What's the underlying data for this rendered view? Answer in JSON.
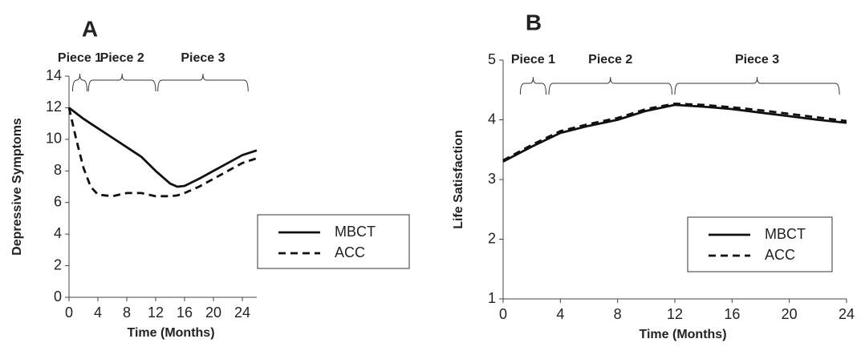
{
  "chart_data": [
    {
      "type": "line",
      "panel_label": "A",
      "x_label": "Time (Months)",
      "y_label": "Depressive Symptoms",
      "x": [
        0,
        1,
        2,
        3,
        4,
        6,
        8,
        10,
        12,
        14,
        15,
        16,
        18,
        20,
        22,
        24,
        26
      ],
      "series": [
        {
          "name": "MBCT",
          "color": "#111111",
          "style": "solid",
          "values": [
            12,
            11.65,
            11.3,
            11.0,
            10.7,
            10.1,
            9.5,
            8.9,
            8.0,
            7.2,
            7.0,
            7.05,
            7.5,
            8.0,
            8.5,
            9.0,
            9.3
          ]
        },
        {
          "name": "ACC",
          "color": "#111111",
          "style": "dashed",
          "values": [
            12,
            10.0,
            8.2,
            7.0,
            6.5,
            6.4,
            6.6,
            6.6,
            6.4,
            6.4,
            6.45,
            6.6,
            7.0,
            7.5,
            8.0,
            8.5,
            8.8
          ]
        }
      ],
      "xlim": [
        0,
        26
      ],
      "xticks": [
        0,
        4,
        8,
        12,
        16,
        20,
        24
      ],
      "ylim": [
        0,
        14
      ],
      "yticks": [
        0,
        2,
        4,
        6,
        8,
        10,
        12,
        14
      ],
      "grid": false,
      "legend": "lower right",
      "pieces": [
        {
          "label": "Piece 1",
          "start": 0.5,
          "end": 2.5
        },
        {
          "label": "Piece 2",
          "start": 2.7,
          "end": 12
        },
        {
          "label": "Piece 3",
          "start": 12.3,
          "end": 24.8
        }
      ]
    },
    {
      "type": "line",
      "panel_label": "B",
      "x_label": "Time (Months)",
      "y_label": "Life Satisfaction",
      "x": [
        0,
        2,
        4,
        6,
        8,
        10,
        12,
        14,
        16,
        18,
        20,
        22,
        24
      ],
      "series": [
        {
          "name": "MBCT",
          "color": "#111111",
          "style": "solid",
          "values": [
            3.3,
            3.55,
            3.78,
            3.9,
            4.0,
            4.15,
            4.25,
            4.22,
            4.18,
            4.12,
            4.06,
            4.0,
            3.95
          ]
        },
        {
          "name": "ACC",
          "color": "#111111",
          "style": "dashed",
          "values": [
            3.32,
            3.58,
            3.81,
            3.93,
            4.03,
            4.18,
            4.27,
            4.25,
            4.21,
            4.16,
            4.1,
            4.04,
            3.98
          ]
        }
      ],
      "xlim": [
        0,
        24
      ],
      "xticks": [
        0,
        4,
        8,
        12,
        16,
        20,
        24
      ],
      "ylim": [
        1,
        5
      ],
      "yticks": [
        1,
        2,
        3,
        4,
        5
      ],
      "grid": false,
      "legend": "lower right",
      "pieces": [
        {
          "label": "Piece 1",
          "start": 1.2,
          "end": 3.0
        },
        {
          "label": "Piece 2",
          "start": 3.2,
          "end": 11.8
        },
        {
          "label": "Piece 3",
          "start": 12.0,
          "end": 23.5
        }
      ]
    }
  ]
}
